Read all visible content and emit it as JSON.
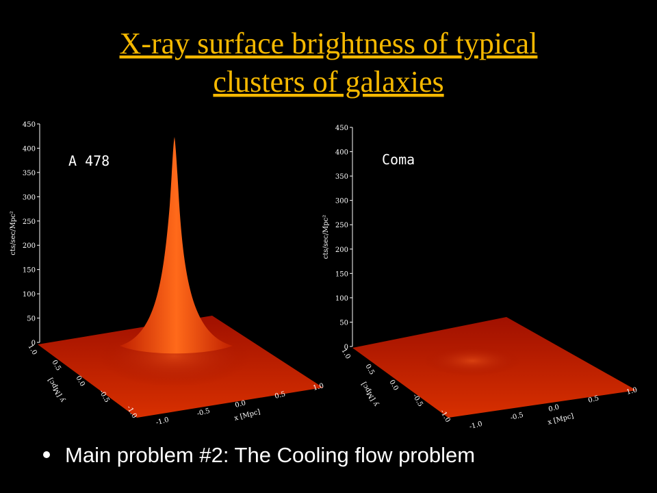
{
  "slide": {
    "title_lines": [
      "X-ray surface brightness of typical",
      "clusters of galaxies"
    ],
    "panels": [
      {
        "label": "A 478",
        "z_axis_label": "cts/sec/Mpc²",
        "z_ticks": [
          "0",
          "50",
          "100",
          "150",
          "200",
          "250",
          "300",
          "350",
          "400",
          "450"
        ],
        "y_axis_label": "y [Mpc]",
        "y_ticks": [
          "1.0",
          "0.5",
          "0.0",
          "-0.5",
          "-1.0"
        ],
        "x_axis_label": "x [Mpc]",
        "x_ticks": [
          "-1.0",
          "-0.5",
          "0.0",
          "0.5",
          "1.0"
        ]
      },
      {
        "label": "Coma",
        "z_axis_label": "cts/sec/Mpc²",
        "z_ticks": [
          "0",
          "50",
          "100",
          "150",
          "200",
          "250",
          "300",
          "350",
          "400",
          "450"
        ],
        "y_axis_label": "y [Mpc]",
        "y_ticks": [
          "1.0",
          "0.5",
          "0.0",
          "-0.5",
          "-1.0"
        ],
        "x_axis_label": "x [Mpc]",
        "x_ticks": [
          "-1.0",
          "-0.5",
          "0.0",
          "0.5",
          "1.0"
        ]
      }
    ],
    "bullets": [
      "Main problem #2: The Cooling flow problem"
    ]
  }
}
